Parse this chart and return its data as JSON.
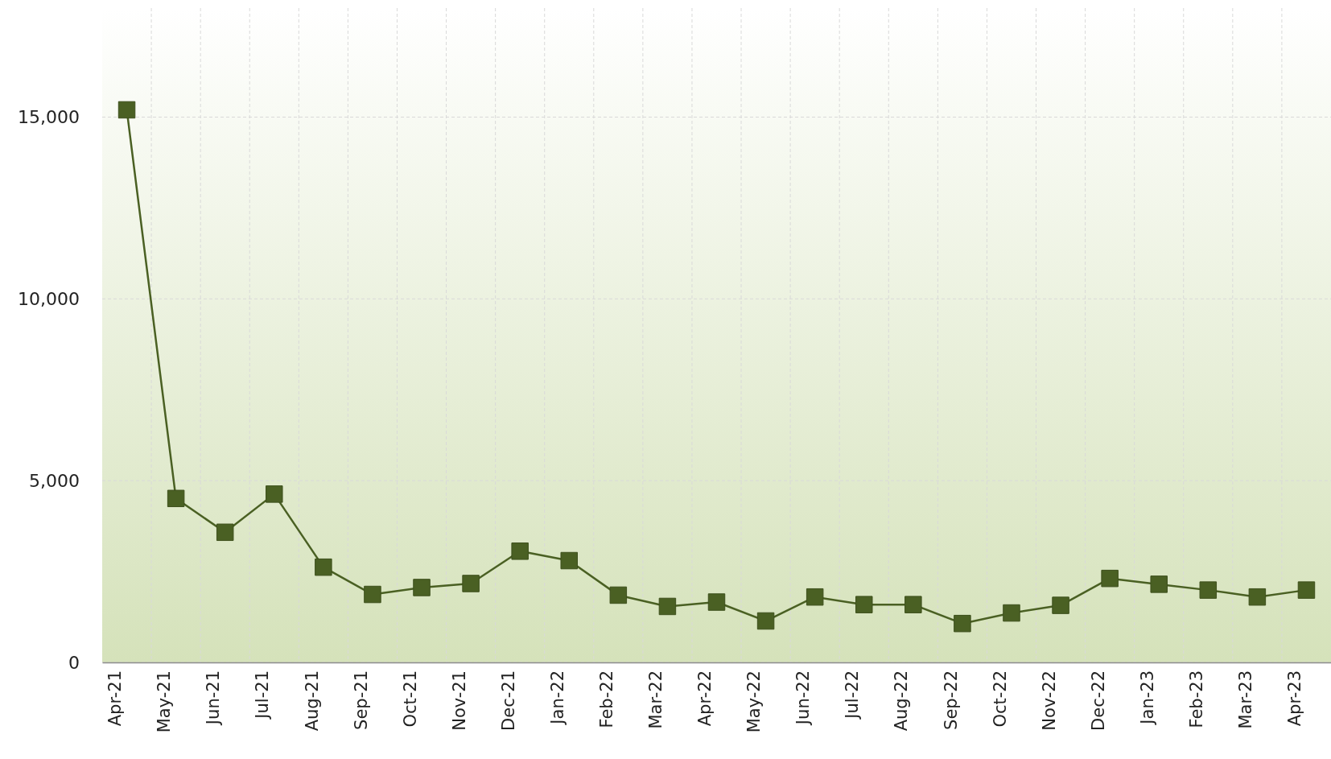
{
  "chart_data": {
    "type": "line",
    "categories": [
      "Apr-21",
      "May-21",
      "Jun-21",
      "Jul-21",
      "Aug-21",
      "Sep-21",
      "Oct-21",
      "Nov-21",
      "Dec-21",
      "Jan-22",
      "Feb-22",
      "Mar-22",
      "Apr-22",
      "May-22",
      "Jun-22",
      "Jul-22",
      "Aug-22",
      "Sep-22",
      "Oct-22",
      "Nov-22",
      "Dec-22",
      "Jan-23",
      "Feb-23",
      "Mar-23",
      "Apr-23"
    ],
    "series": [
      {
        "color": "#4a6023",
        "values": [
          15200,
          4510,
          3580,
          4630,
          2620,
          1870,
          2060,
          2170,
          3060,
          2800,
          1850,
          1540,
          1660,
          1140,
          1800,
          1590,
          1590,
          1070,
          1360,
          1570,
          2310,
          2150,
          1990,
          1800,
          1990
        ]
      }
    ],
    "ylim": [
      0,
      18000
    ],
    "yticks": [
      0,
      {
        "value": 5000,
        "label": "5,000"
      },
      {
        "value": 10000,
        "label": "10,000"
      },
      {
        "value": 15000,
        "label": "15,000"
      }
    ],
    "grid": true,
    "marker": "square",
    "line_style": "solid"
  }
}
